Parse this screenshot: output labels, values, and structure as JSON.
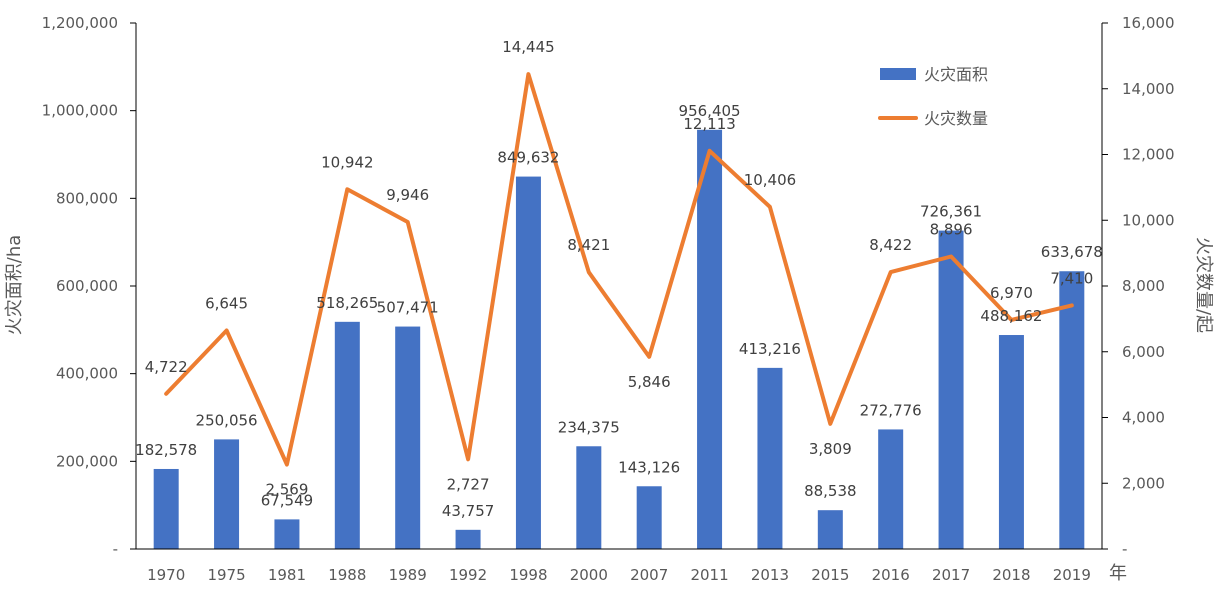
{
  "chart_data": {
    "type": "bar+line",
    "categories": [
      "1970",
      "1975",
      "1981",
      "1988",
      "1989",
      "1992",
      "1998",
      "2000",
      "2007",
      "2011",
      "2013",
      "2015",
      "2016",
      "2017",
      "2018",
      "2019"
    ],
    "series": [
      {
        "name": "火灾面积",
        "type": "bar",
        "axis": "left",
        "color": "#4472C4",
        "values": [
          182578,
          250056,
          67549,
          518265,
          507471,
          43757,
          849632,
          234375,
          143126,
          956405,
          413216,
          88538,
          272776,
          726361,
          488162,
          633678
        ],
        "labels": [
          "182,578",
          "250,056",
          "67,549",
          "518,265",
          "507,471",
          "43,757",
          "849,632",
          "234,375",
          "143,126",
          "956,405",
          "413,216",
          "88,538",
          "272,776",
          "726,361",
          "488,162",
          "633,678"
        ]
      },
      {
        "name": "火灾数量",
        "type": "line",
        "axis": "right",
        "color": "#ED7D31",
        "values": [
          4722,
          6645,
          2569,
          10942,
          9946,
          2727,
          14445,
          8421,
          5846,
          12113,
          10406,
          3809,
          8422,
          8896,
          6970,
          7410
        ],
        "labels": [
          "4,722",
          "6,645",
          "2,569",
          "10,942",
          "9,946",
          "2,727",
          "14,445",
          "8,421",
          "5,846",
          "12,113",
          "10,406",
          "3,809",
          "8,422",
          "8,896",
          "6,970",
          "7,410"
        ]
      }
    ],
    "y_left": {
      "label": "火灾面积/ha",
      "range": [
        0,
        1200000
      ],
      "ticks": [
        0,
        200000,
        400000,
        600000,
        800000,
        1000000,
        1200000
      ],
      "tick_labels": [
        "-",
        "200,000",
        "400,000",
        "600,000",
        "800,000",
        "1,000,000",
        "1,200,000"
      ]
    },
    "y_right": {
      "label": "火灾数量/起",
      "range": [
        0,
        16000
      ],
      "ticks": [
        0,
        2000,
        4000,
        6000,
        8000,
        10000,
        12000,
        14000,
        16000
      ],
      "tick_labels": [
        "-",
        "2,000",
        "4,000",
        "6,000",
        "8,000",
        "10,000",
        "12,000",
        "14,000",
        "16,000"
      ]
    },
    "x_unit": "年",
    "legend": {
      "position": "top-right",
      "items": [
        "火灾面积",
        "火灾数量"
      ]
    },
    "grid": false
  }
}
